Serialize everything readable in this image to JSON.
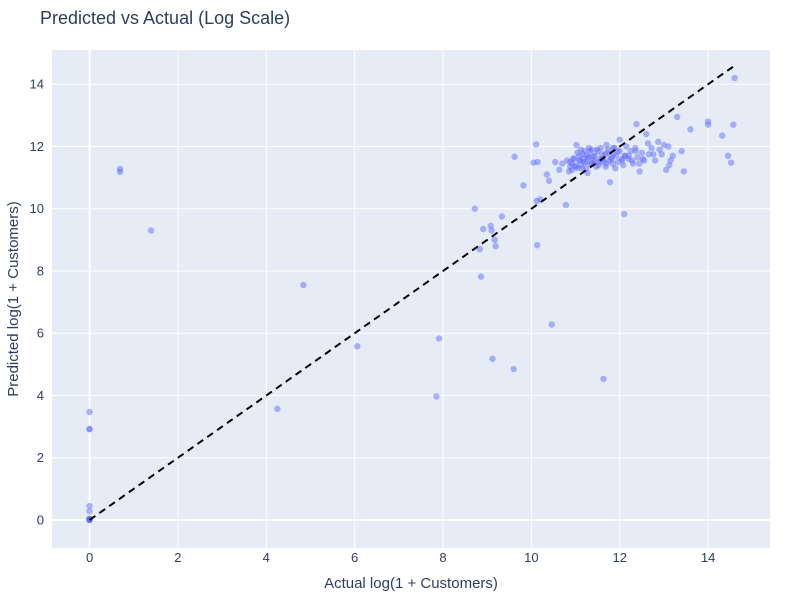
{
  "chart_data": {
    "type": "scatter",
    "title": "Predicted vs Actual (Log Scale)",
    "xlabel": "Actual log(1 + Customers)",
    "ylabel": "Predicted log(1 + Customers)",
    "xlim": [
      -0.85,
      15.4
    ],
    "ylim": [
      -0.9,
      15.1
    ],
    "x_ticks": [
      0,
      2,
      4,
      6,
      8,
      10,
      12,
      14
    ],
    "y_ticks": [
      0,
      2,
      4,
      6,
      8,
      10,
      12,
      14
    ],
    "grid": true,
    "background": "#E5ECF6",
    "grid_color": "#ffffff",
    "point_color": "#636EFA",
    "point_opacity": 0.5,
    "reference_line": {
      "x": [
        0,
        14.6
      ],
      "y": [
        0,
        14.6
      ],
      "style": "dash",
      "color": "#000000"
    },
    "series": [
      {
        "x": [
          0,
          0,
          0,
          0,
          0,
          0,
          0,
          0,
          0,
          0,
          0,
          0,
          0.69,
          0.69,
          1.39,
          4.25,
          4.84,
          6.06,
          7.85,
          7.91,
          8.72,
          8.83,
          8.86,
          8.91,
          9.08,
          9.12,
          9.17,
          9.19,
          9.33,
          9.1,
          9.62,
          9.6,
          9.82,
          10.05,
          10.11,
          10.14,
          10.12,
          10.2,
          10.13,
          10.35,
          10.4,
          10.46,
          10.54,
          10.63,
          10.7,
          10.78,
          10.88,
          10.81,
          10.85,
          10.92,
          10.95,
          11.0,
          11.02,
          11.05,
          11.08,
          11.1,
          11.12,
          11.15,
          11.17,
          11.2,
          11.22,
          11.25,
          11.27,
          11.3,
          11.33,
          11.36,
          11.4,
          11.43,
          11.47,
          11.5,
          11.54,
          11.57,
          11.6,
          11.63,
          11.67,
          11.7,
          11.74,
          11.78,
          11.82,
          11.86,
          11.9,
          11.95,
          12.0,
          12.05,
          12.1,
          12.12,
          12.15,
          12.2,
          12.25,
          12.3,
          12.35,
          12.38,
          12.4,
          12.45,
          12.5,
          12.55,
          12.6,
          12.66,
          12.72,
          12.8,
          12.87,
          12.95,
          13.05,
          13.1,
          13.12,
          13.15,
          13.2,
          13.3,
          13.4,
          13.45,
          13.6,
          14.0,
          14.0,
          14.32,
          14.45,
          14.52,
          14.57,
          14.6,
          10.88,
          10.92,
          10.96,
          11.0,
          11.04,
          11.08,
          11.12,
          11.16,
          11.2,
          11.24,
          11.28,
          11.32,
          11.36,
          11.4,
          11.44,
          11.48,
          11.52,
          11.56,
          11.6,
          11.64,
          11.68,
          11.72,
          11.76,
          11.8,
          11.84,
          11.88,
          11.92,
          11.96,
          12.0,
          12.04,
          12.08,
          12.2,
          12.28,
          12.36,
          12.44,
          12.52,
          12.64,
          12.76,
          12.9,
          13.0,
          11.3,
          11.7,
          12.12,
          11.62,
          11.85
        ],
        "y": [
          0.0,
          0.02,
          0.04,
          0.0,
          0.03,
          0.01,
          0.28,
          0.45,
          2.92,
          2.92,
          3.47,
          0.02,
          11.28,
          11.18,
          9.3,
          3.57,
          7.55,
          5.58,
          3.97,
          5.83,
          10.0,
          8.7,
          7.82,
          9.35,
          9.45,
          5.18,
          9.0,
          8.8,
          9.75,
          9.3,
          11.67,
          4.85,
          10.75,
          11.48,
          12.07,
          11.5,
          10.25,
          10.3,
          8.83,
          11.1,
          10.9,
          6.28,
          11.5,
          11.25,
          11.45,
          10.12,
          11.35,
          11.55,
          11.2,
          11.45,
          11.62,
          11.38,
          12.05,
          11.3,
          11.7,
          11.55,
          11.9,
          11.3,
          11.6,
          11.85,
          11.5,
          11.72,
          11.15,
          11.65,
          11.45,
          11.9,
          11.55,
          11.7,
          11.35,
          11.85,
          11.5,
          11.95,
          11.6,
          4.53,
          11.75,
          11.45,
          11.9,
          10.85,
          11.6,
          11.75,
          11.3,
          11.85,
          12.22,
          11.55,
          9.83,
          11.7,
          12.0,
          11.6,
          11.85,
          11.45,
          11.95,
          12.72,
          11.65,
          11.2,
          11.8,
          11.55,
          12.4,
          11.75,
          11.95,
          11.55,
          12.15,
          11.75,
          11.25,
          12.0,
          11.4,
          11.55,
          11.7,
          12.95,
          11.85,
          11.2,
          12.55,
          12.8,
          12.7,
          12.35,
          11.7,
          11.48,
          12.7,
          14.2,
          11.5,
          11.25,
          11.6,
          11.35,
          11.8,
          11.55,
          11.4,
          11.75,
          11.5,
          11.3,
          11.65,
          11.85,
          11.45,
          11.7,
          11.55,
          11.9,
          11.4,
          11.6,
          11.75,
          11.5,
          11.35,
          11.8,
          11.55,
          11.65,
          11.45,
          11.95,
          11.7,
          11.5,
          11.85,
          11.6,
          11.4,
          11.7,
          11.55,
          11.85,
          11.45,
          11.6,
          12.1,
          11.75,
          11.9,
          12.05,
          11.95,
          12.05,
          11.7,
          11.6,
          11.95
        ]
      }
    ]
  }
}
